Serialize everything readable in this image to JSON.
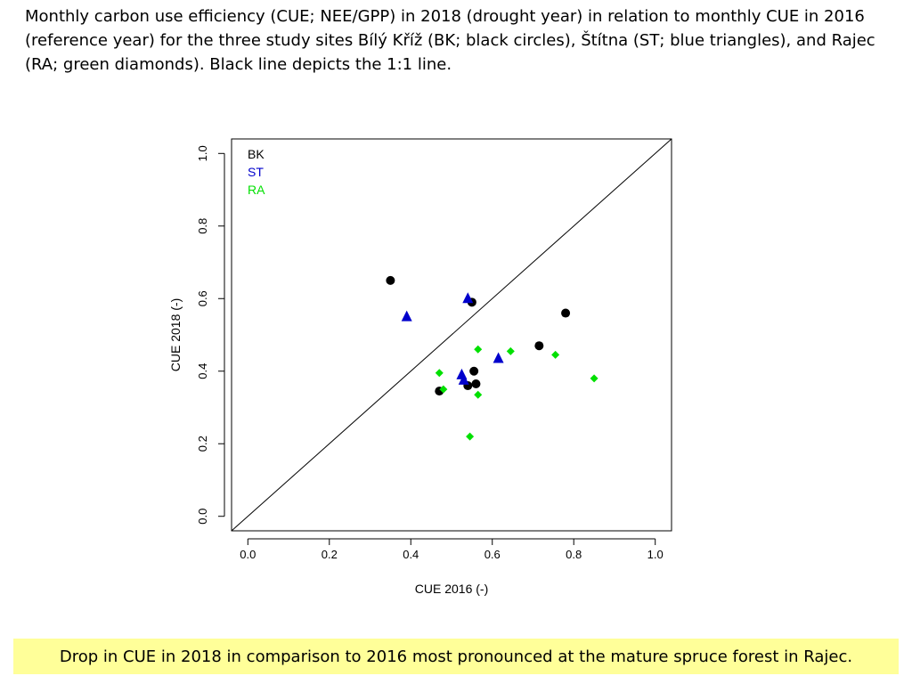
{
  "caption": "Monthly carbon use efficiency (CUE; NEE/GPP) in 2018 (drought year) in relation to monthly CUE in 2016 (reference year) for the three study sites Bílý Kříž (BK; black circles), Štítna (ST; blue triangles), and Rajec (RA; green diamonds). Black line depicts the 1:1 line.",
  "footer_note": "Drop in CUE in 2018 in comparison to 2016 most pronounced at the mature spruce forest in Rajec.",
  "chart_data": {
    "type": "scatter",
    "xlabel": "CUE 2016 (-)",
    "ylabel": "CUE 2018 (-)",
    "xlim": [
      -0.04,
      1.04
    ],
    "ylim": [
      -0.04,
      1.04
    ],
    "xticks": [
      "0.0",
      "0.2",
      "0.4",
      "0.6",
      "0.8",
      "1.0"
    ],
    "yticks": [
      "0.0",
      "0.2",
      "0.4",
      "0.6",
      "0.8",
      "1.0"
    ],
    "grid": false,
    "legend_position": "top-left",
    "reference_line": "1:1",
    "series": [
      {
        "name": "BK",
        "color": "#000000",
        "marker": "circle",
        "points": [
          [
            0.35,
            0.65
          ],
          [
            0.55,
            0.59
          ],
          [
            0.78,
            0.56
          ],
          [
            0.715,
            0.47
          ],
          [
            0.555,
            0.4
          ],
          [
            0.47,
            0.345
          ],
          [
            0.54,
            0.36
          ],
          [
            0.56,
            0.365
          ]
        ]
      },
      {
        "name": "ST",
        "color": "#0000cc",
        "marker": "triangle",
        "points": [
          [
            0.39,
            0.55
          ],
          [
            0.54,
            0.6
          ],
          [
            0.615,
            0.435
          ],
          [
            0.525,
            0.39
          ],
          [
            0.53,
            0.375
          ]
        ]
      },
      {
        "name": "RA",
        "color": "#00e000",
        "marker": "diamond",
        "points": [
          [
            0.565,
            0.46
          ],
          [
            0.645,
            0.455
          ],
          [
            0.755,
            0.445
          ],
          [
            0.85,
            0.38
          ],
          [
            0.47,
            0.395
          ],
          [
            0.48,
            0.35
          ],
          [
            0.565,
            0.335
          ],
          [
            0.545,
            0.22
          ]
        ]
      }
    ]
  }
}
